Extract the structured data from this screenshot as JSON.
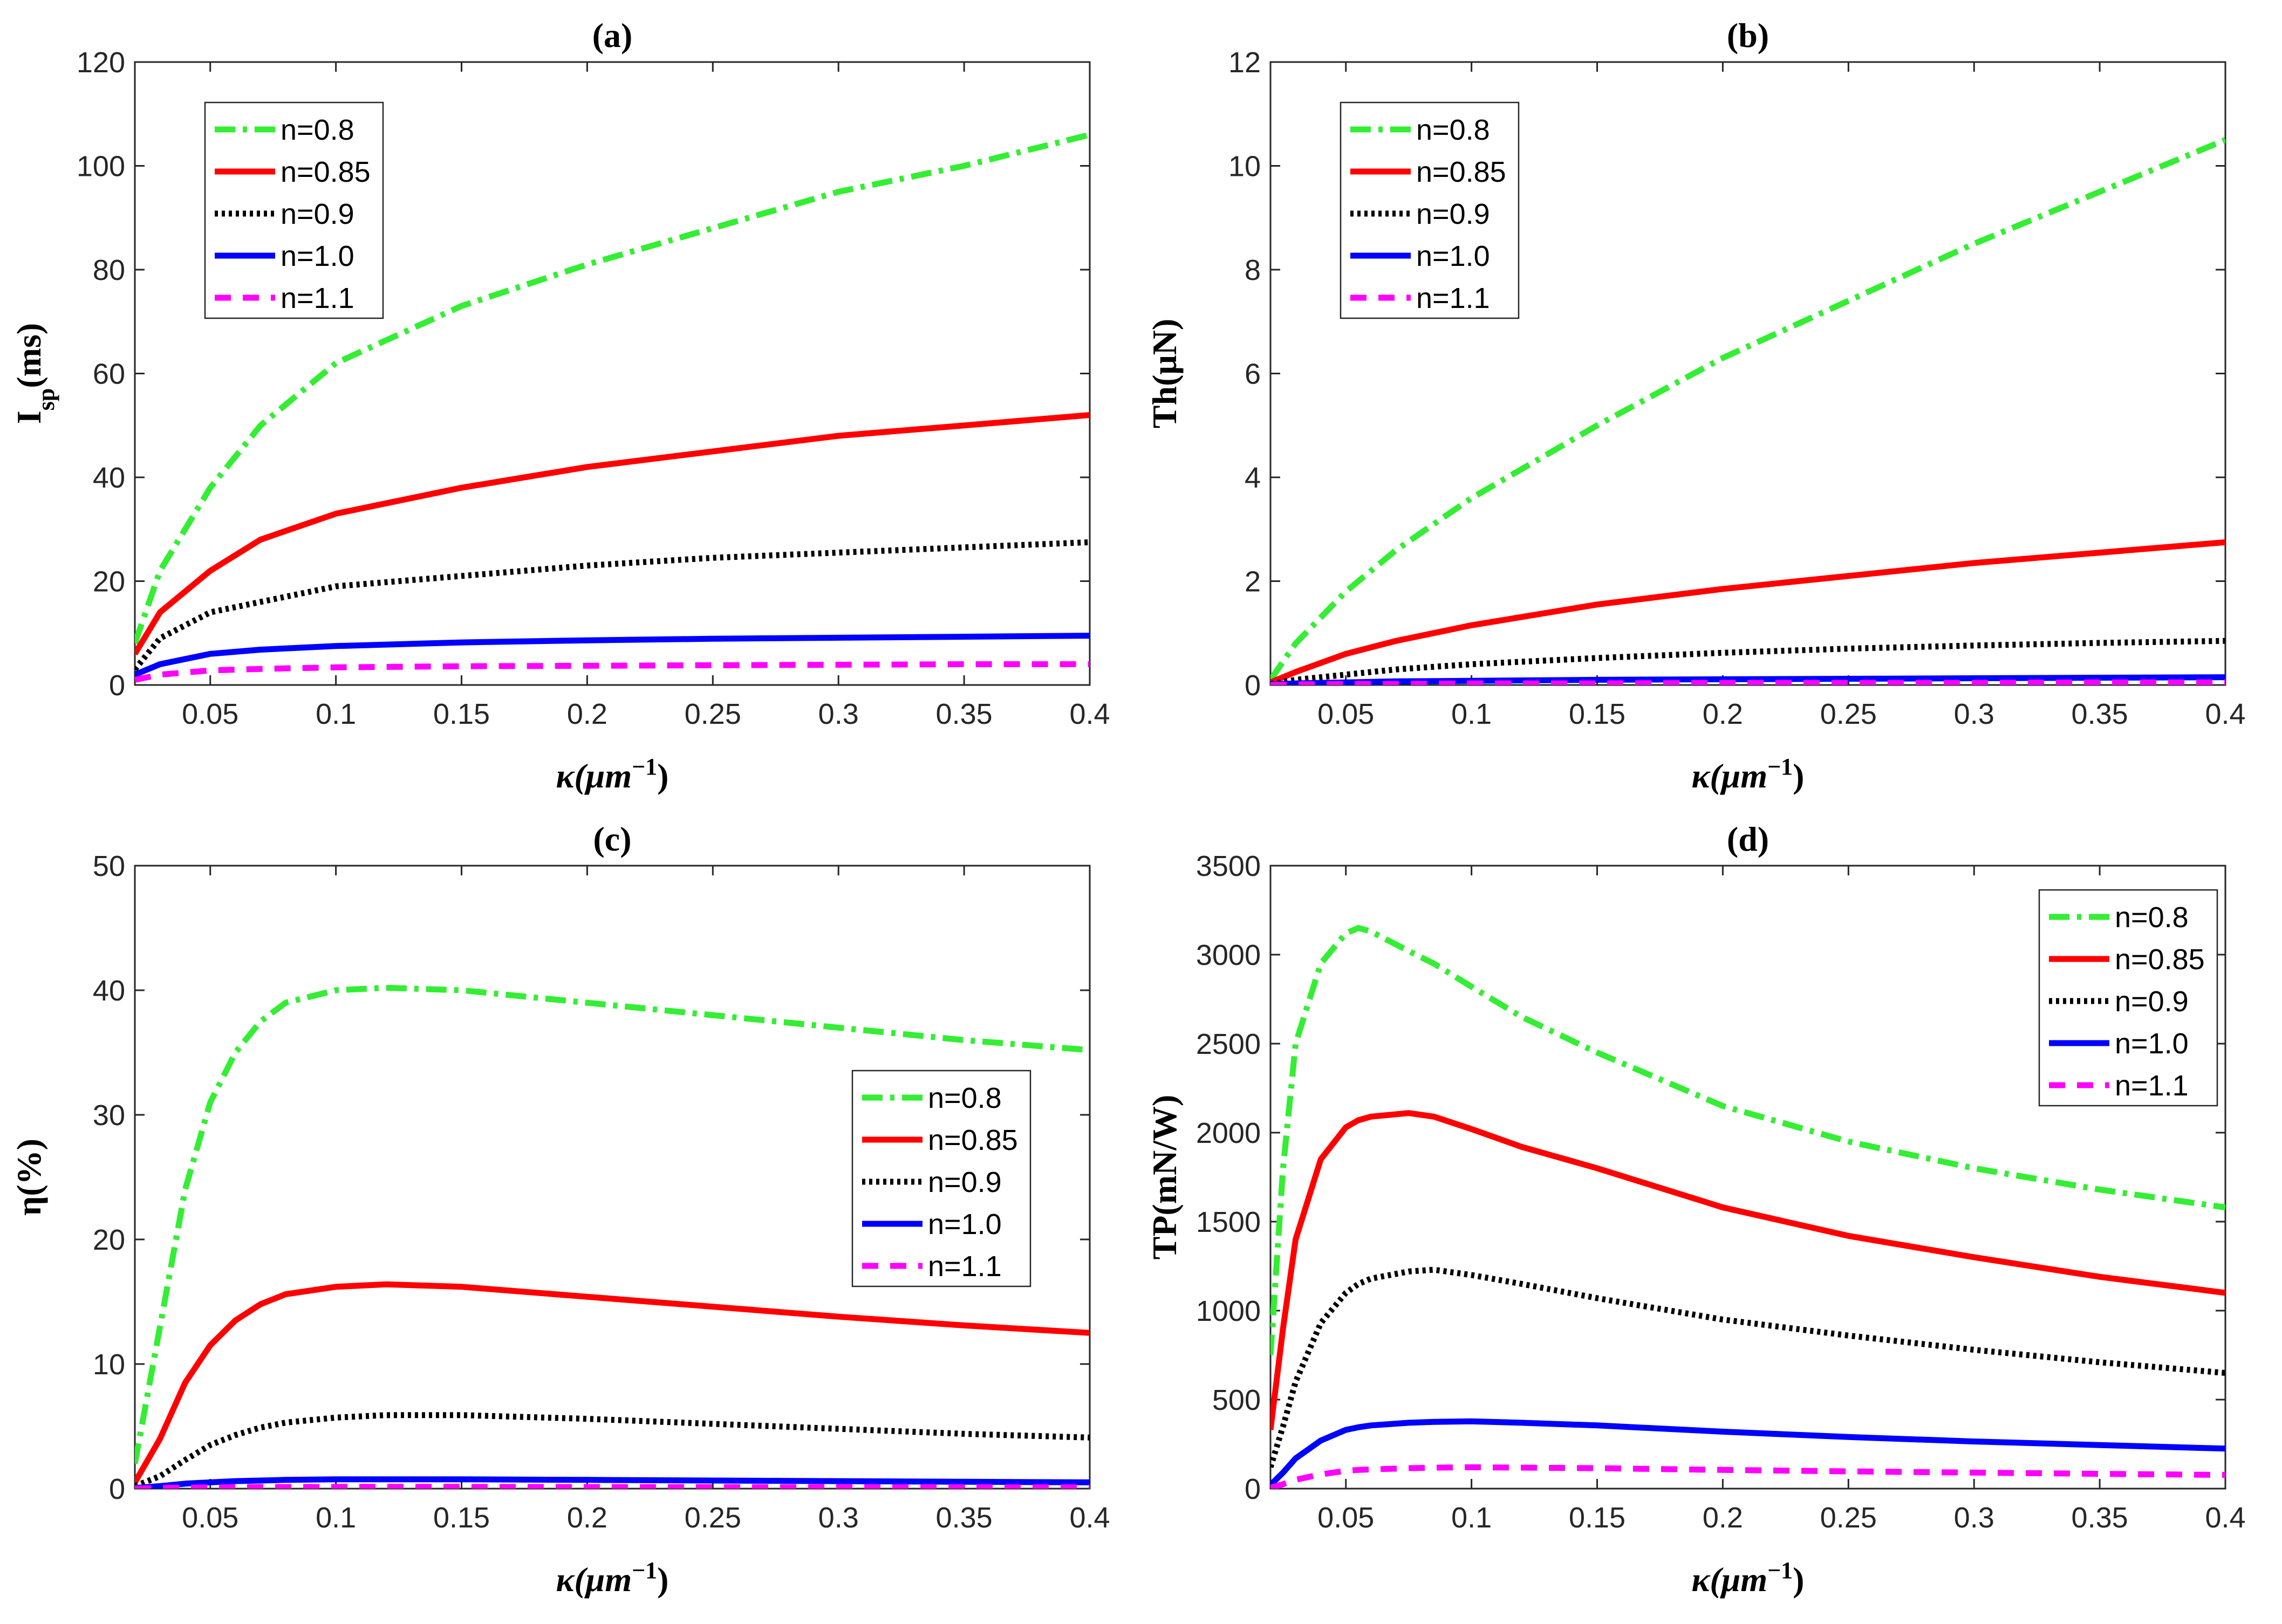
{
  "chart_data": [
    {
      "type": "line",
      "panel": "(a)",
      "title": "(a)",
      "ylabel": "I_sp(ms)",
      "ylabel_main": "I",
      "ylabel_sub": "sp",
      "ylabel_rest": "(ms)",
      "xlabel_main": "κ(μm",
      "xlabel_sup": "−1",
      "xlabel_close": ")",
      "xlim": [
        0.02,
        0.4
      ],
      "ylim": [
        0,
        120
      ],
      "xticks": [
        0.05,
        0.1,
        0.15,
        0.2,
        0.25,
        0.3,
        0.35,
        0.4
      ],
      "yticks": [
        0,
        20,
        40,
        60,
        80,
        100,
        120
      ],
      "legend_position": "top-left",
      "x": [
        0.02,
        0.03,
        0.05,
        0.07,
        0.1,
        0.15,
        0.2,
        0.25,
        0.3,
        0.35,
        0.4
      ],
      "series": [
        {
          "name": "n=0.8",
          "values": [
            8,
            22,
            38,
            50,
            62,
            73,
            81,
            88,
            95,
            100,
            106
          ]
        },
        {
          "name": "n=0.85",
          "values": [
            6,
            14,
            22,
            28,
            33,
            38,
            42,
            45,
            48,
            50,
            52
          ]
        },
        {
          "name": "n=0.9",
          "values": [
            3,
            9,
            14,
            16,
            19,
            21,
            23,
            24.5,
            25.5,
            26.5,
            27.5
          ]
        },
        {
          "name": "n=1.0",
          "values": [
            2,
            4,
            6,
            6.8,
            7.5,
            8.2,
            8.6,
            8.9,
            9.1,
            9.3,
            9.5
          ]
        },
        {
          "name": "n=1.1",
          "values": [
            1,
            2,
            2.8,
            3.1,
            3.4,
            3.6,
            3.7,
            3.8,
            3.9,
            4,
            4
          ]
        }
      ]
    },
    {
      "type": "line",
      "panel": "(b)",
      "title": "(b)",
      "ylabel": "Th(μN)",
      "ylabel_main": "Th(μN)",
      "ylabel_sub": "",
      "ylabel_rest": "",
      "xlabel_main": "κ(μm",
      "xlabel_sup": "−1",
      "xlabel_close": ")",
      "xlim": [
        0.02,
        0.4
      ],
      "ylim": [
        0,
        12
      ],
      "xticks": [
        0.05,
        0.1,
        0.15,
        0.2,
        0.25,
        0.3,
        0.35,
        0.4
      ],
      "yticks": [
        0,
        2,
        4,
        6,
        8,
        10,
        12
      ],
      "legend_position": "top-left",
      "x": [
        0.02,
        0.03,
        0.05,
        0.07,
        0.1,
        0.15,
        0.2,
        0.25,
        0.3,
        0.35,
        0.4
      ],
      "series": [
        {
          "name": "n=0.8",
          "values": [
            0.1,
            0.8,
            1.8,
            2.6,
            3.6,
            5.0,
            6.3,
            7.4,
            8.5,
            9.5,
            10.5
          ]
        },
        {
          "name": "n=0.85",
          "values": [
            0.05,
            0.25,
            0.6,
            0.85,
            1.15,
            1.55,
            1.85,
            2.1,
            2.35,
            2.55,
            2.75
          ]
        },
        {
          "name": "n=0.9",
          "values": [
            0.02,
            0.1,
            0.2,
            0.3,
            0.4,
            0.52,
            0.62,
            0.7,
            0.76,
            0.81,
            0.85
          ]
        },
        {
          "name": "n=1.0",
          "values": [
            0.01,
            0.03,
            0.05,
            0.07,
            0.08,
            0.1,
            0.11,
            0.12,
            0.13,
            0.14,
            0.15
          ]
        },
        {
          "name": "n=1.1",
          "values": [
            0,
            0.01,
            0.02,
            0.02,
            0.03,
            0.03,
            0.04,
            0.04,
            0.04,
            0.05,
            0.05
          ]
        }
      ]
    },
    {
      "type": "line",
      "panel": "(c)",
      "title": "(c)",
      "ylabel": "η(%)",
      "ylabel_main": "η(%)",
      "ylabel_sub": "",
      "ylabel_rest": "",
      "xlabel_main": "κ(μm",
      "xlabel_sup": "−1",
      "xlabel_close": ")",
      "xlim": [
        0.02,
        0.4
      ],
      "ylim": [
        0,
        50
      ],
      "xticks": [
        0.05,
        0.1,
        0.15,
        0.2,
        0.25,
        0.3,
        0.35,
        0.4
      ],
      "yticks": [
        0,
        10,
        20,
        30,
        40,
        50
      ],
      "legend_position": "right",
      "x": [
        0.02,
        0.03,
        0.04,
        0.05,
        0.06,
        0.07,
        0.08,
        0.1,
        0.12,
        0.15,
        0.2,
        0.25,
        0.3,
        0.35,
        0.4
      ],
      "series": [
        {
          "name": "n=0.8",
          "values": [
            2,
            13,
            24,
            31,
            35,
            37.5,
            39,
            40,
            40.2,
            40,
            39,
            38,
            37,
            36,
            35.2
          ]
        },
        {
          "name": "n=0.85",
          "values": [
            0.5,
            4,
            8.5,
            11.5,
            13.5,
            14.8,
            15.6,
            16.2,
            16.4,
            16.2,
            15.4,
            14.6,
            13.8,
            13.1,
            12.5
          ]
        },
        {
          "name": "n=0.9",
          "values": [
            0.2,
            1,
            2.3,
            3.5,
            4.3,
            4.9,
            5.3,
            5.7,
            5.9,
            5.9,
            5.6,
            5.2,
            4.8,
            4.4,
            4.1
          ]
        },
        {
          "name": "n=1.0",
          "values": [
            0.05,
            0.2,
            0.4,
            0.5,
            0.6,
            0.65,
            0.7,
            0.75,
            0.75,
            0.75,
            0.7,
            0.65,
            0.6,
            0.55,
            0.5
          ]
        },
        {
          "name": "n=1.1",
          "values": [
            0.01,
            0.05,
            0.08,
            0.1,
            0.12,
            0.13,
            0.13,
            0.14,
            0.14,
            0.14,
            0.13,
            0.12,
            0.12,
            0.11,
            0.1
          ]
        }
      ]
    },
    {
      "type": "line",
      "panel": "(d)",
      "title": "(d)",
      "ylabel": "TP(mN/W)",
      "ylabel_main": "TP(mN/W)",
      "ylabel_sub": "",
      "ylabel_rest": "",
      "xlabel_main": "κ(μm",
      "xlabel_sup": "−1",
      "xlabel_close": ")",
      "xlim": [
        0.02,
        0.4
      ],
      "ylim": [
        0,
        3500
      ],
      "xticks": [
        0.05,
        0.1,
        0.15,
        0.2,
        0.25,
        0.3,
        0.35,
        0.4
      ],
      "yticks": [
        0,
        500,
        1000,
        1500,
        2000,
        2500,
        3000,
        3500
      ],
      "legend_position": "top-right",
      "x": [
        0.02,
        0.025,
        0.03,
        0.04,
        0.05,
        0.055,
        0.06,
        0.075,
        0.085,
        0.1,
        0.12,
        0.15,
        0.2,
        0.25,
        0.3,
        0.35,
        0.4
      ],
      "series": [
        {
          "name": "n=0.8",
          "values": [
            750,
            1800,
            2500,
            2950,
            3120,
            3150,
            3130,
            3020,
            2950,
            2820,
            2650,
            2450,
            2150,
            1950,
            1800,
            1680,
            1580
          ]
        },
        {
          "name": "n=0.85",
          "values": [
            330,
            900,
            1400,
            1850,
            2030,
            2070,
            2090,
            2110,
            2090,
            2020,
            1920,
            1800,
            1580,
            1420,
            1300,
            1190,
            1100
          ]
        },
        {
          "name": "n=0.9",
          "values": [
            120,
            350,
            600,
            930,
            1100,
            1150,
            1180,
            1220,
            1230,
            1200,
            1150,
            1070,
            950,
            860,
            780,
            710,
            650
          ]
        },
        {
          "name": "n=1.0",
          "values": [
            20,
            90,
            170,
            270,
            330,
            345,
            355,
            370,
            375,
            378,
            370,
            355,
            320,
            290,
            265,
            245,
            225
          ]
        },
        {
          "name": "n=1.1",
          "values": [
            5,
            25,
            50,
            80,
            100,
            105,
            108,
            115,
            118,
            120,
            118,
            115,
            105,
            97,
            90,
            83,
            77
          ]
        }
      ]
    }
  ],
  "series_colors": [
    "#33ee33",
    "#ff0000",
    "#000000",
    "#0000ff",
    "#ff00ff"
  ],
  "series_dash": [
    "38,14,8,14",
    "",
    "6,7",
    "",
    "30,22"
  ]
}
